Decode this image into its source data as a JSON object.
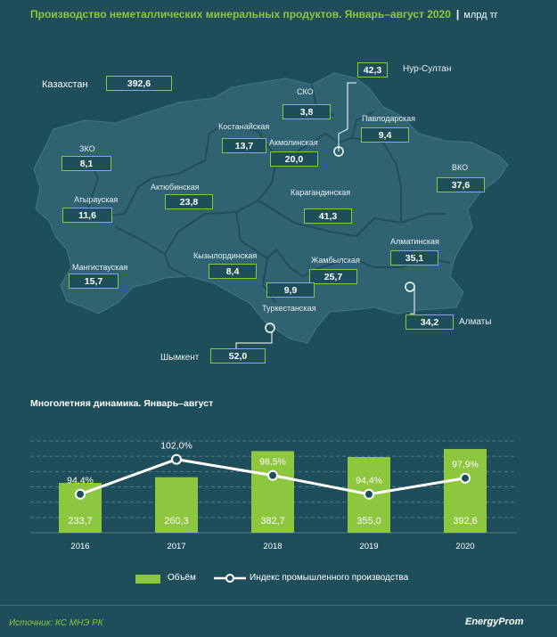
{
  "header": {
    "title": "Производство неметаллических минеральных продуктов. Январь–август 2020",
    "separator": "|",
    "unit": "млрд тг"
  },
  "map": {
    "country_label": "Казахстан",
    "country_value": "392,6",
    "regions": [
      {
        "name": "СКО",
        "value": "3,8"
      },
      {
        "name": "Павлодарская",
        "value": "9,4"
      },
      {
        "name": "Костанайская",
        "value": "13,7"
      },
      {
        "name": "Акмолинская",
        "value": "20,0"
      },
      {
        "name": "ЗКО",
        "value": "8,1"
      },
      {
        "name": "ВКО",
        "value": "37,6"
      },
      {
        "name": "Атырауская",
        "value": "11,6"
      },
      {
        "name": "Актюбинская",
        "value": "23,8"
      },
      {
        "name": "Карагандинская",
        "value": "41,3"
      },
      {
        "name": "Алматинская",
        "value": "35,1"
      },
      {
        "name": "Кызылординская",
        "value": "8,4"
      },
      {
        "name": "Мангистауская",
        "value": "15,7"
      },
      {
        "name": "Жамбылская",
        "value": "25,7"
      },
      {
        "name": "Туркестанская",
        "value": "9,9"
      }
    ],
    "cities": [
      {
        "name": "Нур-Султан",
        "value": "42,3"
      },
      {
        "name": "Алматы",
        "value": "34,2"
      },
      {
        "name": "Шымкент",
        "value": "52,0"
      }
    ]
  },
  "chart_title": "Многолетняя  динамика.  Январь–август",
  "chart_data": {
    "type": "bar",
    "categories": [
      "2016",
      "2017",
      "2018",
      "2019",
      "2020"
    ],
    "series": [
      {
        "name": "Объём",
        "type": "bar",
        "values": [
          233.7,
          260.3,
          382.7,
          355.0,
          392.6
        ],
        "labels": [
          "233,7",
          "260,3",
          "382,7",
          "355,0",
          "392,6"
        ],
        "color": "#8dc63f"
      },
      {
        "name": "Индекс промышленного производства",
        "type": "line",
        "values": [
          94.4,
          102.0,
          98.5,
          94.4,
          97.9
        ],
        "labels": [
          "94,4%",
          "102,0%",
          "98,5%",
          "94,4%",
          "97,9%"
        ],
        "color": "#ffffff"
      }
    ],
    "grid": true,
    "legend_position": "bottom"
  },
  "legend": {
    "volume": "Объём",
    "index": "Индекс промышленного производства"
  },
  "footer": {
    "source": "Источник: КС МНЭ РК",
    "brand": "EnergyProm"
  },
  "colors": {
    "background": "#1f4e5b",
    "map_fill": "#2f6371",
    "accent": "#8dc63f",
    "line": "#ffffff"
  }
}
